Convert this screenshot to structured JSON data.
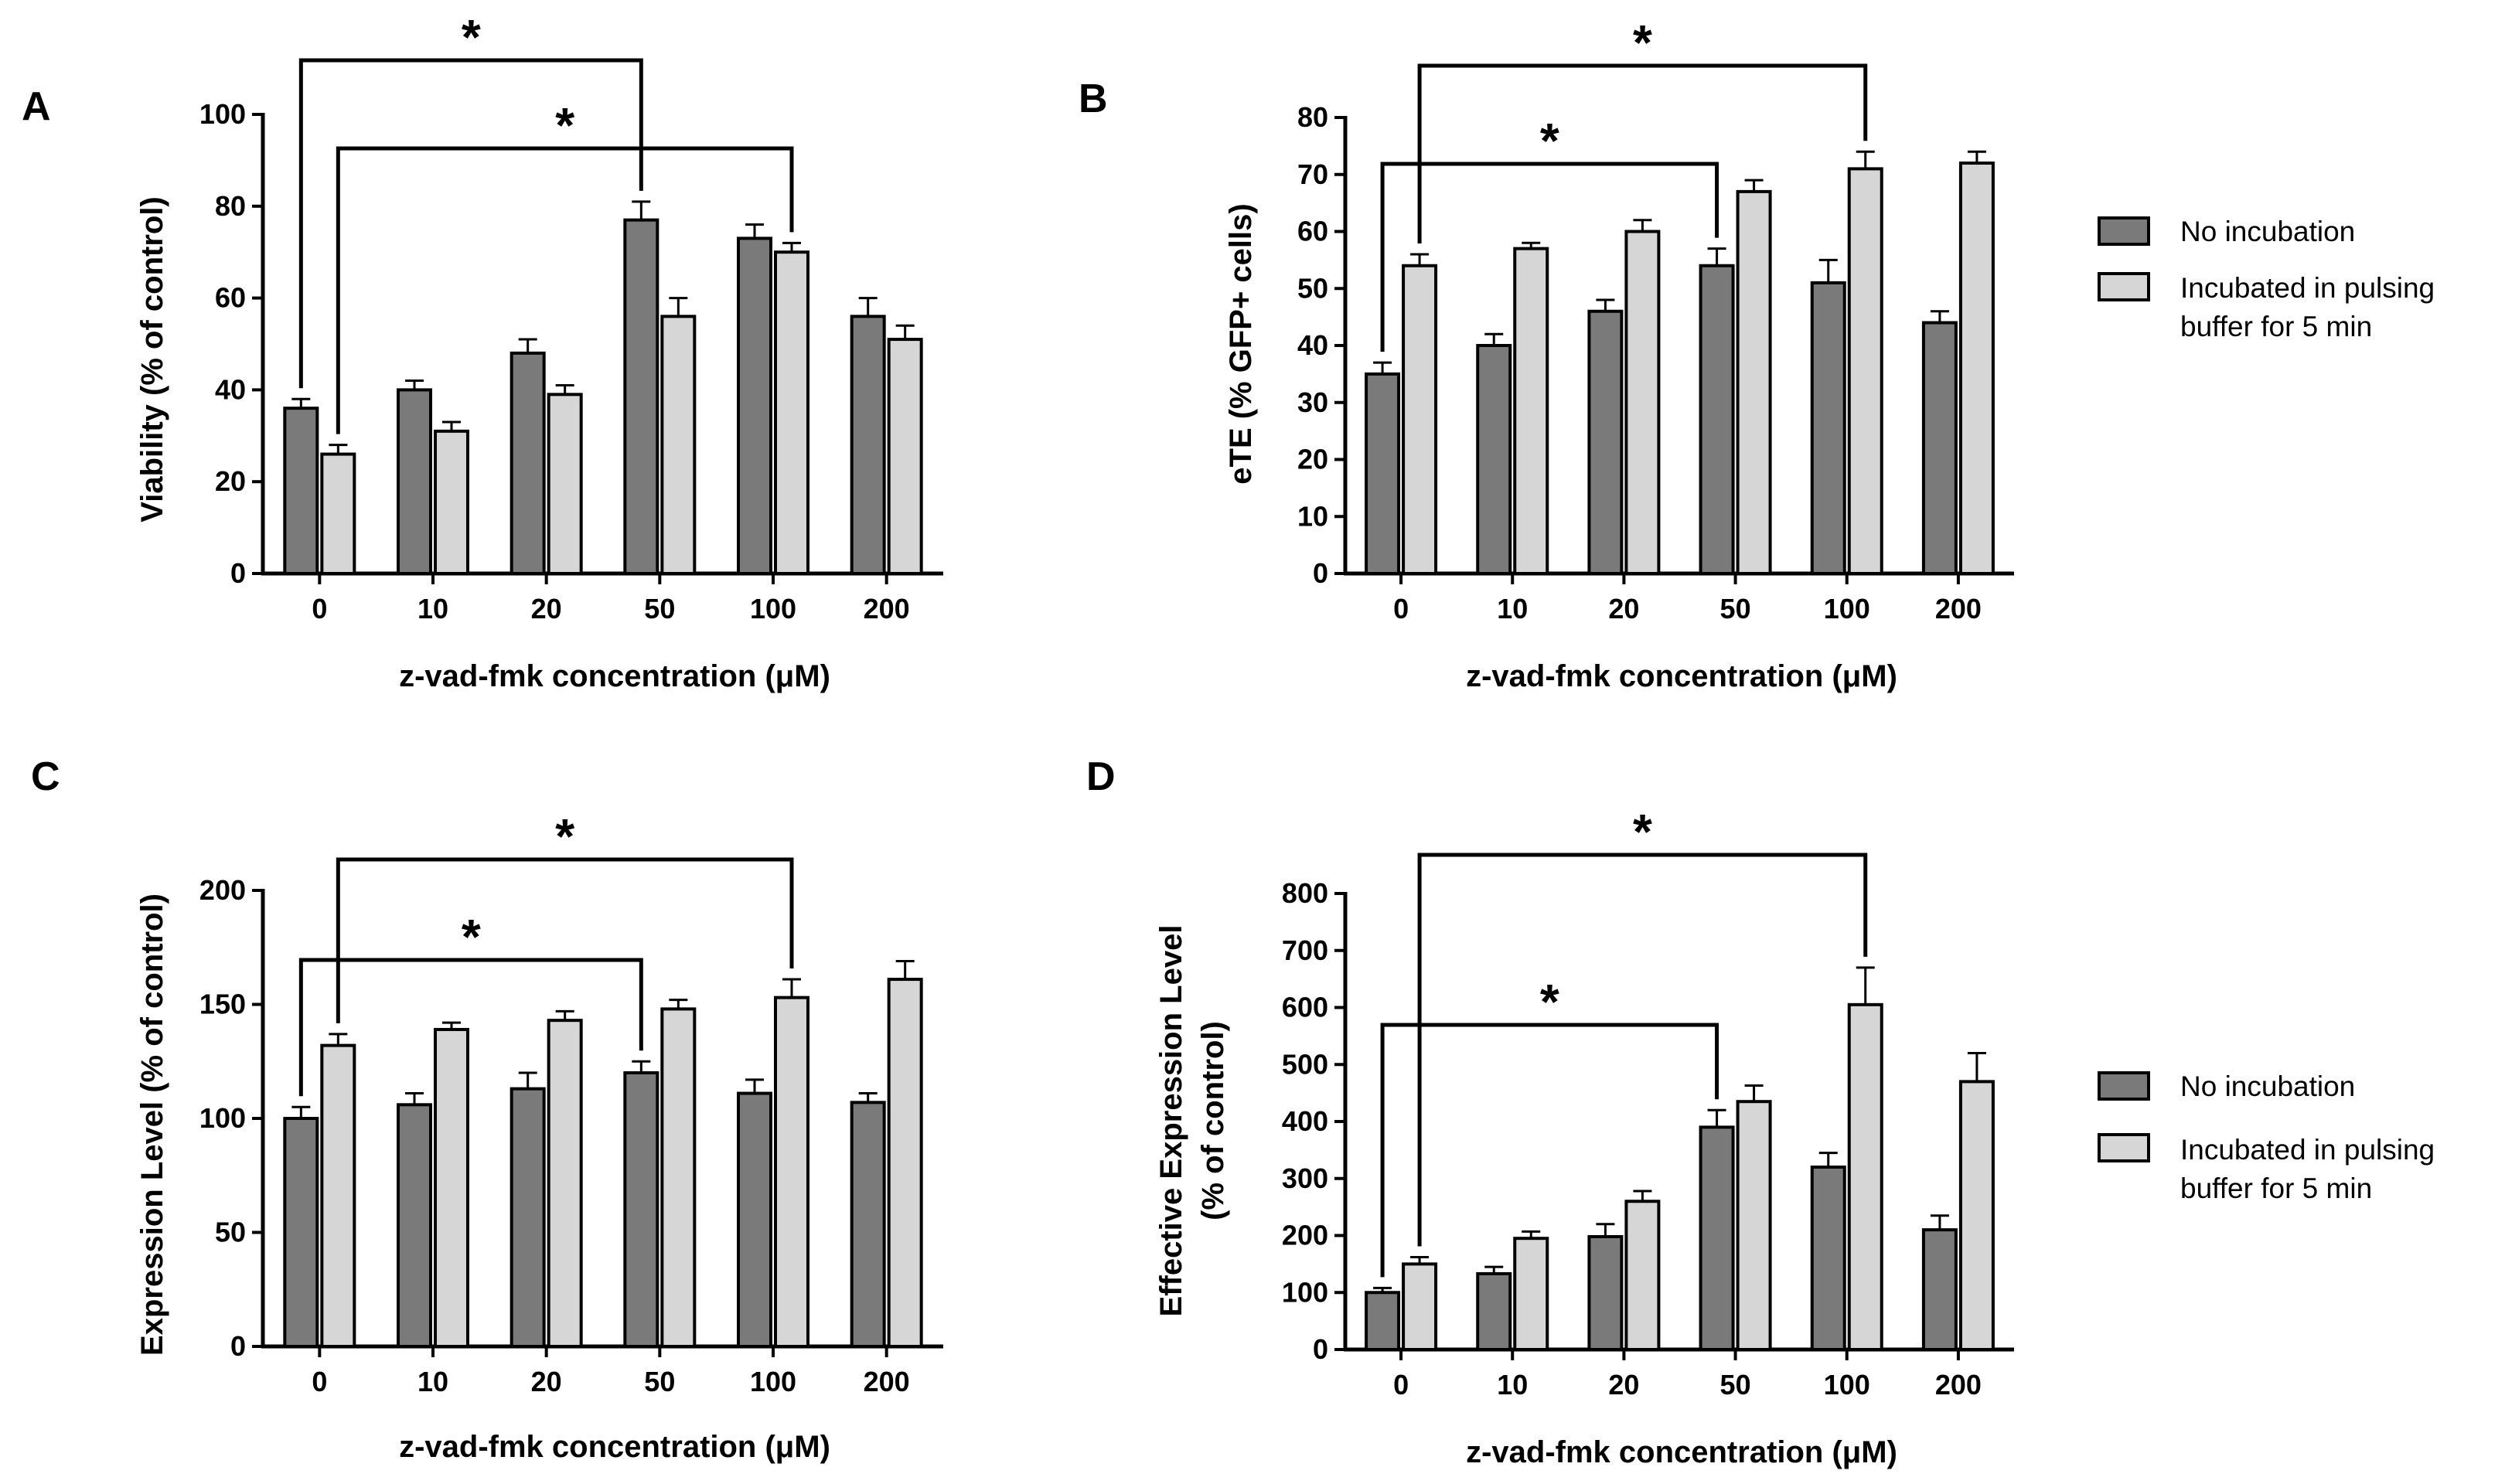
{
  "colors": {
    "no_incubation": "#7a7a7a",
    "incubated": "#d6d6d6",
    "stroke": "#000000"
  },
  "legend": {
    "no_incubation": "No incubation",
    "incubated_line1": "Incubated in pulsing",
    "incubated_line2": "buffer for 5 min"
  },
  "chart_data": [
    {
      "panel": "A",
      "type": "bar",
      "categories": [
        "0",
        "10",
        "20",
        "50",
        "100",
        "200"
      ],
      "xlabel": "z-vad-fmk concentration (μM)",
      "ylabel": "Viability (% of control)",
      "ylim": [
        0,
        100
      ],
      "yticks": [
        "0",
        "20",
        "40",
        "60",
        "80",
        "100"
      ],
      "series": [
        {
          "name": "No incubation",
          "values": [
            36,
            40,
            48,
            77,
            73,
            56
          ],
          "errors": [
            2,
            2,
            3,
            4,
            3,
            4
          ]
        },
        {
          "name": "Incubated in pulsing buffer for 5 min",
          "values": [
            26,
            31,
            39,
            56,
            70,
            51
          ],
          "errors": [
            2,
            2,
            2,
            4,
            2,
            3
          ]
        }
      ],
      "significance": [
        {
          "label": "*",
          "from": [
            0,
            0
          ],
          "to": [
            3,
            0
          ]
        },
        {
          "label": "*",
          "from": [
            0,
            1
          ],
          "to": [
            4,
            1
          ]
        }
      ]
    },
    {
      "panel": "B",
      "type": "bar",
      "categories": [
        "0",
        "10",
        "20",
        "50",
        "100",
        "200"
      ],
      "xlabel": "z-vad-fmk concentration (μM)",
      "ylabel": "eTE (% GFP+ cells)",
      "ylim": [
        0,
        80
      ],
      "yticks": [
        "0",
        "10",
        "20",
        "30",
        "40",
        "50",
        "60",
        "70",
        "80"
      ],
      "series": [
        {
          "name": "No incubation",
          "values": [
            35,
            40,
            46,
            54,
            51,
            44
          ],
          "errors": [
            2,
            2,
            2,
            3,
            4,
            2
          ]
        },
        {
          "name": "Incubated in pulsing buffer for 5 min",
          "values": [
            54,
            57,
            60,
            67,
            71,
            72
          ],
          "errors": [
            2,
            1,
            2,
            2,
            3,
            2
          ]
        }
      ],
      "significance": [
        {
          "label": "*",
          "from": [
            0,
            0
          ],
          "to": [
            3,
            0
          ]
        },
        {
          "label": "*",
          "from": [
            0,
            1
          ],
          "to": [
            4,
            1
          ]
        }
      ]
    },
    {
      "panel": "C",
      "type": "bar",
      "categories": [
        "0",
        "10",
        "20",
        "50",
        "100",
        "200"
      ],
      "xlabel": "z-vad-fmk concentration (μM)",
      "ylabel": "Expression Level (% of control)",
      "ylim": [
        0,
        200
      ],
      "yticks": [
        "0",
        "50",
        "100",
        "150",
        "200"
      ],
      "series": [
        {
          "name": "No incubation",
          "values": [
            100,
            106,
            113,
            120,
            111,
            107
          ],
          "errors": [
            5,
            5,
            7,
            5,
            6,
            4
          ]
        },
        {
          "name": "Incubated in pulsing buffer for 5 min",
          "values": [
            132,
            139,
            143,
            148,
            153,
            161
          ],
          "errors": [
            5,
            3,
            4,
            4,
            8,
            8
          ]
        }
      ],
      "significance": [
        {
          "label": "*",
          "from": [
            0,
            0
          ],
          "to": [
            3,
            0
          ]
        },
        {
          "label": "*",
          "from": [
            0,
            1
          ],
          "to": [
            4,
            1
          ]
        }
      ]
    },
    {
      "panel": "D",
      "type": "bar",
      "categories": [
        "0",
        "10",
        "20",
        "50",
        "100",
        "200"
      ],
      "xlabel": "z-vad-fmk concentration (μM)",
      "ylabel_line1": "Effective Expression Level",
      "ylabel_line2": "(% of control)",
      "ylim": [
        0,
        800
      ],
      "yticks": [
        "0",
        "100",
        "200",
        "300",
        "400",
        "500",
        "600",
        "700",
        "800"
      ],
      "series": [
        {
          "name": "No incubation",
          "values": [
            100,
            133,
            198,
            390,
            320,
            210
          ],
          "errors": [
            8,
            12,
            22,
            30,
            25,
            25
          ]
        },
        {
          "name": "Incubated in pulsing buffer for 5 min",
          "values": [
            150,
            195,
            260,
            435,
            605,
            470
          ],
          "errors": [
            12,
            12,
            18,
            28,
            65,
            50
          ]
        }
      ],
      "significance": [
        {
          "label": "*",
          "from": [
            0,
            0
          ],
          "to": [
            3,
            0
          ]
        },
        {
          "label": "*",
          "from": [
            0,
            1
          ],
          "to": [
            4,
            1
          ]
        }
      ]
    }
  ]
}
